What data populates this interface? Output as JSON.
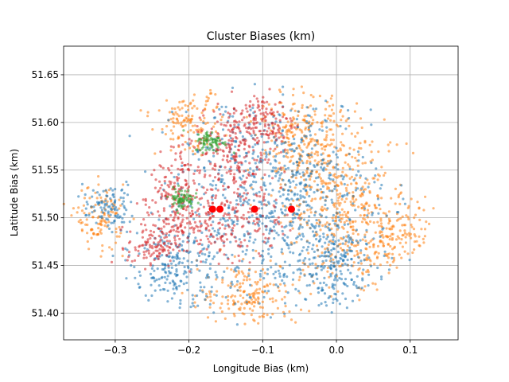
{
  "chart_data": {
    "type": "scatter",
    "title": "Cluster Biases (km)",
    "xlabel": "Longitude Bias (km)",
    "ylabel": "Latitude Bias (km)",
    "xlim": [
      -0.37,
      0.165
    ],
    "ylim": [
      51.372,
      51.68
    ],
    "x_ticks": [
      -0.3,
      -0.2,
      -0.1,
      0.0,
      0.1
    ],
    "x_tick_labels": [
      "−0.3",
      "−0.2",
      "−0.1",
      "0.0",
      "0.1"
    ],
    "y_ticks": [
      51.4,
      51.45,
      51.5,
      51.55,
      51.6,
      51.65
    ],
    "y_tick_labels": [
      "51.40",
      "51.45",
      "51.50",
      "51.55",
      "51.60",
      "51.65"
    ],
    "grid": true,
    "legend": "none",
    "colors": {
      "blue": "#1f77b4",
      "orange": "#ff7f0e",
      "green": "#2ca02c",
      "red": "#d62728",
      "marker": "#ff0000"
    },
    "series": [
      {
        "color": "#ff7f0e",
        "regions": [
          {
            "cx": 0.0,
            "cy": 51.52,
            "rx": 0.065,
            "ry": 0.09
          },
          {
            "cx": 0.07,
            "cy": 51.48,
            "rx": 0.06,
            "ry": 0.04
          },
          {
            "cx": -0.05,
            "cy": 51.58,
            "rx": 0.05,
            "ry": 0.05
          },
          {
            "cx": -0.12,
            "cy": 51.42,
            "rx": 0.06,
            "ry": 0.03
          },
          {
            "cx": -0.32,
            "cy": 51.5,
            "rx": 0.03,
            "ry": 0.03
          },
          {
            "cx": -0.2,
            "cy": 51.6,
            "rx": 0.04,
            "ry": 0.03
          }
        ]
      },
      {
        "color": "#1f77b4",
        "regions": [
          {
            "cx": -0.08,
            "cy": 51.52,
            "rx": 0.12,
            "ry": 0.1
          },
          {
            "cx": -0.22,
            "cy": 51.45,
            "rx": 0.05,
            "ry": 0.05
          },
          {
            "cx": 0.0,
            "cy": 51.45,
            "rx": 0.05,
            "ry": 0.04
          },
          {
            "cx": -0.31,
            "cy": 51.51,
            "rx": 0.03,
            "ry": 0.02
          }
        ]
      },
      {
        "color": "#d62728",
        "regions": [
          {
            "cx": -0.16,
            "cy": 51.5,
            "rx": 0.08,
            "ry": 0.04
          },
          {
            "cx": -0.14,
            "cy": 51.57,
            "rx": 0.05,
            "ry": 0.04
          },
          {
            "cx": -0.22,
            "cy": 51.52,
            "rx": 0.03,
            "ry": 0.05
          },
          {
            "cx": -0.25,
            "cy": 51.47,
            "rx": 0.03,
            "ry": 0.02
          },
          {
            "cx": -0.1,
            "cy": 51.6,
            "rx": 0.04,
            "ry": 0.03
          }
        ]
      },
      {
        "color": "#2ca02c",
        "regions": [
          {
            "cx": -0.17,
            "cy": 51.58,
            "rx": 0.02,
            "ry": 0.01
          },
          {
            "cx": -0.21,
            "cy": 51.52,
            "rx": 0.015,
            "ry": 0.01
          }
        ]
      }
    ],
    "markers": [
      {
        "x": -0.168,
        "y": 51.509
      },
      {
        "x": -0.158,
        "y": 51.509
      },
      {
        "x": -0.111,
        "y": 51.509
      },
      {
        "x": -0.061,
        "y": 51.509
      }
    ]
  }
}
